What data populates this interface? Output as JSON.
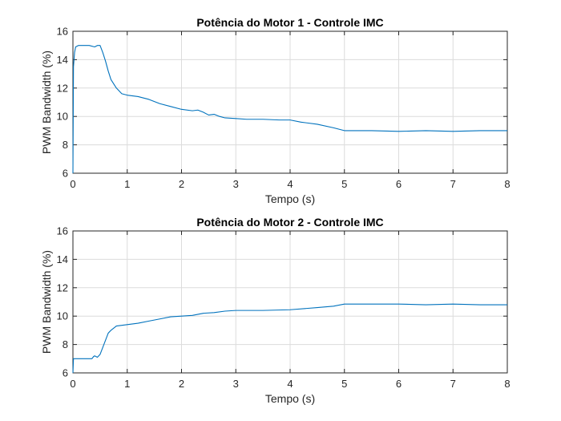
{
  "figure": {
    "line_color": "#0072BD",
    "background": "#ffffff"
  },
  "chart_data": [
    {
      "type": "line",
      "title": "Potência do Motor 1 - Controle IMC",
      "xlabel": "Tempo (s)",
      "ylabel": "PWM Bandwidth (%)",
      "xlim": [
        0,
        8
      ],
      "ylim": [
        6,
        16
      ],
      "xticks": [
        "0",
        "1",
        "2",
        "3",
        "4",
        "5",
        "6",
        "7",
        "8"
      ],
      "yticks": [
        "6",
        "8",
        "10",
        "12",
        "14",
        "16"
      ],
      "grid": true,
      "series": [
        {
          "x": [
            0,
            0.01,
            0.03,
            0.05,
            0.1,
            0.2,
            0.3,
            0.4,
            0.45,
            0.5,
            0.55,
            0.6,
            0.65,
            0.7,
            0.8,
            0.9,
            1.0,
            1.2,
            1.4,
            1.6,
            1.8,
            2.0,
            2.2,
            2.3,
            2.4,
            2.5,
            2.6,
            2.7,
            2.8,
            3.0,
            3.2,
            3.5,
            3.8,
            4.0,
            4.2,
            4.5,
            4.8,
            5.0,
            5.2,
            5.5,
            6.0,
            6.5,
            7.0,
            7.5,
            8.0
          ],
          "y": [
            6.0,
            13.5,
            14.5,
            14.9,
            15.0,
            15.0,
            15.0,
            14.9,
            15.0,
            15.0,
            14.5,
            13.9,
            13.2,
            12.6,
            12.0,
            11.6,
            11.5,
            11.4,
            11.2,
            10.9,
            10.7,
            10.5,
            10.4,
            10.45,
            10.3,
            10.1,
            10.15,
            10.0,
            9.9,
            9.85,
            9.8,
            9.8,
            9.75,
            9.75,
            9.6,
            9.45,
            9.2,
            9.0,
            9.0,
            9.0,
            8.95,
            9.0,
            8.95,
            9.0,
            9.0
          ]
        }
      ]
    },
    {
      "type": "line",
      "title": "Potência do Motor 2 - Controle IMC",
      "xlabel": "Tempo (s)",
      "ylabel": "PWM Bandwidth (%)",
      "xlim": [
        0,
        8
      ],
      "ylim": [
        6,
        16
      ],
      "xticks": [
        "0",
        "1",
        "2",
        "3",
        "4",
        "5",
        "6",
        "7",
        "8"
      ],
      "yticks": [
        "6",
        "8",
        "10",
        "12",
        "14",
        "16"
      ],
      "grid": true,
      "series": [
        {
          "x": [
            0,
            0.01,
            0.05,
            0.2,
            0.35,
            0.38,
            0.4,
            0.45,
            0.5,
            0.55,
            0.6,
            0.65,
            0.7,
            0.8,
            0.9,
            1.0,
            1.2,
            1.4,
            1.6,
            1.8,
            2.0,
            2.2,
            2.4,
            2.6,
            2.8,
            3.0,
            3.5,
            4.0,
            4.5,
            4.8,
            5.0,
            5.2,
            5.5,
            6.0,
            6.5,
            7.0,
            7.5,
            8.0
          ],
          "y": [
            6.0,
            7.0,
            7.0,
            7.0,
            7.0,
            7.15,
            7.2,
            7.1,
            7.3,
            7.8,
            8.3,
            8.8,
            9.0,
            9.3,
            9.35,
            9.4,
            9.5,
            9.65,
            9.8,
            9.95,
            10.0,
            10.05,
            10.2,
            10.25,
            10.35,
            10.4,
            10.4,
            10.45,
            10.6,
            10.7,
            10.85,
            10.85,
            10.85,
            10.85,
            10.8,
            10.85,
            10.8,
            10.8
          ]
        }
      ]
    }
  ]
}
